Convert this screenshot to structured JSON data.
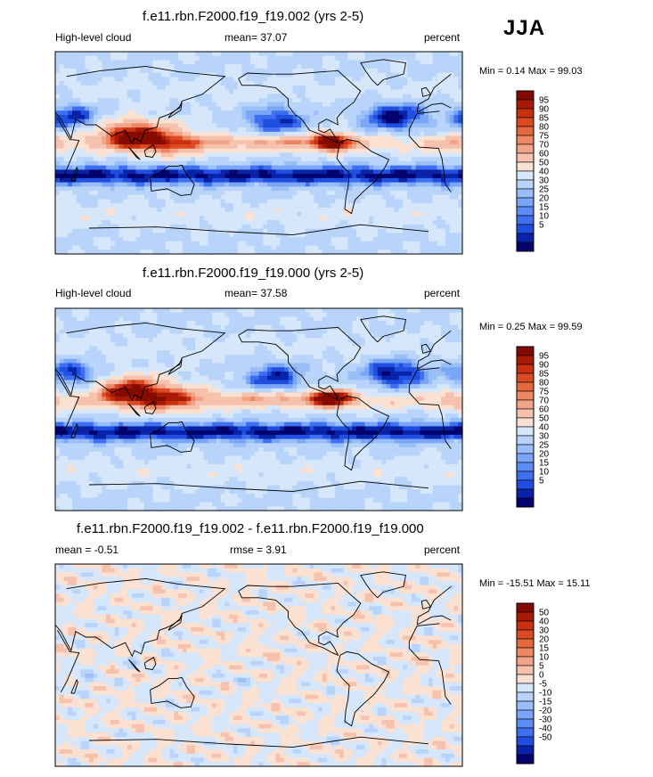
{
  "season": "JJA",
  "colors": {
    "field": [
      "#04036e",
      "#0822a8",
      "#1f4ee0",
      "#3d6ff0",
      "#5b8cf5",
      "#7aa6f7",
      "#99bef8",
      "#b9d4fa",
      "#d6e6fb",
      "#fae1d2",
      "#f6c2ad",
      "#f2a489",
      "#ec8663",
      "#e6683f",
      "#dc4a22",
      "#c9300f",
      "#a81a06",
      "#850b00"
    ],
    "diff": [
      "#04036e",
      "#0822a8",
      "#1f4ee0",
      "#3d6ff0",
      "#5b8cf5",
      "#7aa6f7",
      "#99bef8",
      "#b9d4fa",
      "#d6e6fb",
      "#fae1d2",
      "#f6c2ad",
      "#f2a489",
      "#ec8663",
      "#e6683f",
      "#dc4a22",
      "#c9300f",
      "#a81a06",
      "#850b00"
    ]
  },
  "panels": [
    {
      "title": "f.e11.rbn.F2000.f19_f19.002 (yrs 2-5)",
      "left_label": "High-level cloud",
      "center_label": "mean=  37.07",
      "right_label": "percent",
      "minmax": "Min =   0.14 Max =  99.03"
    },
    {
      "title": "f.e11.rbn.F2000.f19_f19.000 (yrs 2-5)",
      "left_label": "High-level cloud",
      "center_label": "mean=  37.58",
      "right_label": "percent",
      "minmax": "Min =   0.25 Max =  99.59"
    },
    {
      "title": "f.e11.rbn.F2000.f19_f19.002 - f.e11.rbn.F2000.f19_f19.000",
      "left_label": "mean =  -0.51",
      "center_label": "rmse =   3.91",
      "right_label": "percent",
      "minmax": "Min = -15.51 Max =  15.11"
    }
  ],
  "chart_data": [
    {
      "type": "heatmap",
      "title": "f.e11.rbn.F2000.f19_f19.002 (yrs 2-5)",
      "variable": "High-level cloud",
      "units": "percent",
      "mean": 37.07,
      "min": 0.14,
      "max": 99.03,
      "colorbar_levels": [
        5,
        10,
        15,
        20,
        25,
        30,
        40,
        50,
        60,
        70,
        75,
        80,
        85,
        90,
        95
      ],
      "colorbar_labels": [
        "95",
        "90",
        "85",
        "80",
        "75",
        "70",
        "60",
        "50",
        "40",
        "30",
        "25",
        "20",
        "15",
        "10",
        "5"
      ]
    },
    {
      "type": "heatmap",
      "title": "f.e11.rbn.F2000.f19_f19.000 (yrs 2-5)",
      "variable": "High-level cloud",
      "units": "percent",
      "mean": 37.58,
      "min": 0.25,
      "max": 99.59,
      "colorbar_levels": [
        5,
        10,
        15,
        20,
        25,
        30,
        40,
        50,
        60,
        70,
        75,
        80,
        85,
        90,
        95
      ],
      "colorbar_labels": [
        "95",
        "90",
        "85",
        "80",
        "75",
        "70",
        "60",
        "50",
        "40",
        "30",
        "25",
        "20",
        "15",
        "10",
        "5"
      ]
    },
    {
      "type": "heatmap",
      "title": "f.e11.rbn.F2000.f19_f19.002 - f.e11.rbn.F2000.f19_f19.000",
      "units": "percent",
      "mean": -0.51,
      "rmse": 3.91,
      "min": -15.51,
      "max": 15.11,
      "colorbar_levels": [
        -50,
        -40,
        -30,
        -20,
        -15,
        -10,
        -5,
        0,
        5,
        10,
        15,
        20,
        30,
        40,
        50
      ],
      "colorbar_labels": [
        "50",
        "40",
        "30",
        "20",
        "15",
        "10",
        "5",
        "0",
        "-5",
        "-10",
        "-15",
        "-20",
        "-30",
        "-40",
        "-50"
      ]
    }
  ]
}
